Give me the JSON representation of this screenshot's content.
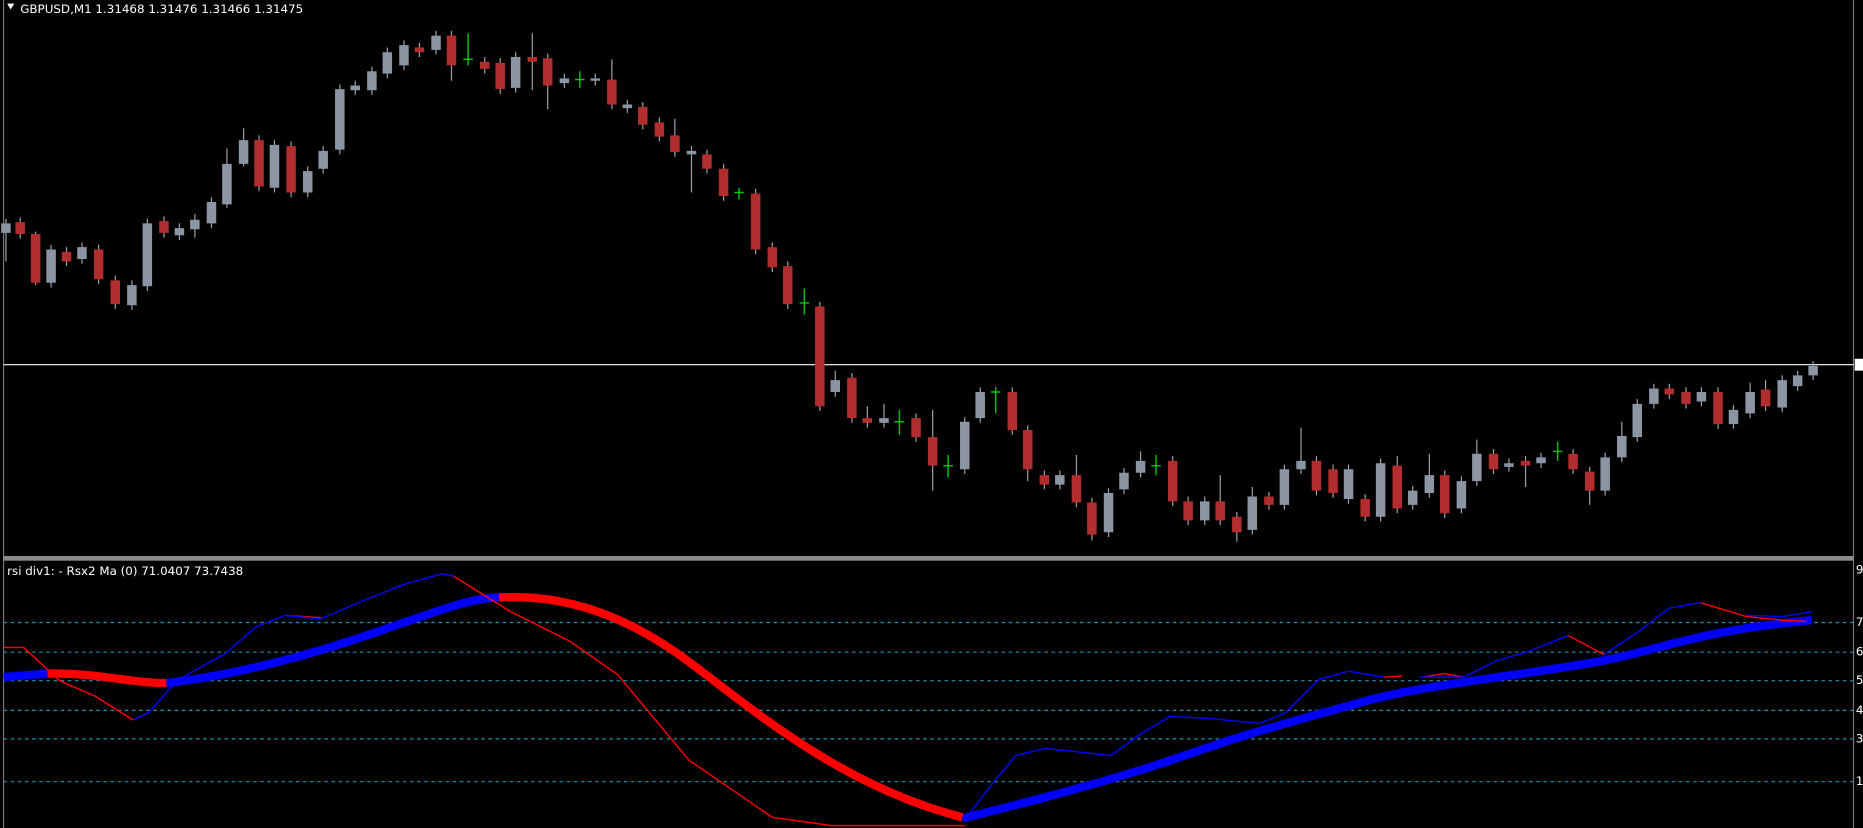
{
  "main_panel": {
    "title": "GBPUSD,M1  1.31468 1.31476 1.31466 1.31475"
  },
  "indicator_panel": {
    "title": "rsi div1: - Rsx2 Ma (0) 71.0407 73.7438",
    "level_labels": [
      "9",
      "7",
      "6",
      "5",
      "4",
      "3",
      "1"
    ]
  }
}
